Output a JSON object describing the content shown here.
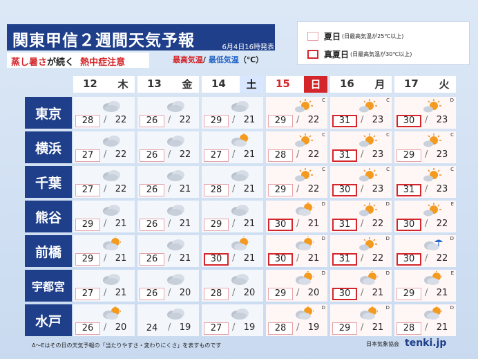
{
  "header": {
    "title": "関東甲信２週間天気予報",
    "issued": "6月4日16時発表",
    "subtitle_red1": "蒸し暑さ",
    "subtitle_black": "が続く",
    "subtitle_red2": "熱中症注意",
    "legend_hi": "最高気温",
    "legend_sep": "/",
    "legend_lo": "最低気温",
    "legend_unit": "（℃）"
  },
  "legend": {
    "natsubi_label": "夏日",
    "natsubi_desc": "(日最高気温が25℃以上)",
    "manatsubi_label": "真夏日",
    "manatsubi_desc": "(日最高気温が30℃以上)"
  },
  "colors": {
    "navy": "#1f3f8a",
    "red": "#d4252a",
    "pink": "#e8a3a8",
    "blue": "#2566c8"
  },
  "days": [
    {
      "num": "12",
      "wk": "木",
      "type": "wkday"
    },
    {
      "num": "13",
      "wk": "金",
      "type": "wkday"
    },
    {
      "num": "14",
      "wk": "土",
      "type": "sat"
    },
    {
      "num": "15",
      "wk": "日",
      "type": "sun"
    },
    {
      "num": "16",
      "wk": "月",
      "type": "wkday"
    },
    {
      "num": "17",
      "wk": "火",
      "type": "wkday"
    }
  ],
  "cities": [
    {
      "name": "東京",
      "cells": [
        {
          "icon": "cloudy",
          "rank": "",
          "hi": "28",
          "lo": "22",
          "style": "natsu"
        },
        {
          "icon": "cloudy",
          "rank": "",
          "hi": "26",
          "lo": "22",
          "style": "natsu"
        },
        {
          "icon": "cloudy",
          "rank": "",
          "hi": "29",
          "lo": "21",
          "style": "natsu"
        },
        {
          "icon": "sun-cloud",
          "rank": "C",
          "hi": "29",
          "lo": "22",
          "style": "natsu"
        },
        {
          "icon": "sun-cloud",
          "rank": "C",
          "hi": "31",
          "lo": "23",
          "style": "mana"
        },
        {
          "icon": "sun-cloud",
          "rank": "D",
          "hi": "30",
          "lo": "23",
          "style": "mana"
        }
      ]
    },
    {
      "name": "横浜",
      "cells": [
        {
          "icon": "cloudy",
          "rank": "",
          "hi": "27",
          "lo": "22",
          "style": "natsu"
        },
        {
          "icon": "cloudy",
          "rank": "",
          "hi": "26",
          "lo": "22",
          "style": "natsu"
        },
        {
          "icon": "cloud-sun",
          "rank": "",
          "hi": "27",
          "lo": "21",
          "style": "natsu"
        },
        {
          "icon": "sun-cloud",
          "rank": "C",
          "hi": "28",
          "lo": "22",
          "style": "natsu"
        },
        {
          "icon": "sun-cloud",
          "rank": "C",
          "hi": "31",
          "lo": "23",
          "style": "mana"
        },
        {
          "icon": "sun-cloud",
          "rank": "C",
          "hi": "29",
          "lo": "23",
          "style": "natsu"
        }
      ]
    },
    {
      "name": "千葉",
      "cells": [
        {
          "icon": "cloudy",
          "rank": "",
          "hi": "27",
          "lo": "22",
          "style": "natsu"
        },
        {
          "icon": "cloudy",
          "rank": "",
          "hi": "26",
          "lo": "21",
          "style": "natsu"
        },
        {
          "icon": "cloudy",
          "rank": "",
          "hi": "28",
          "lo": "21",
          "style": "natsu"
        },
        {
          "icon": "sun-cloud",
          "rank": "C",
          "hi": "29",
          "lo": "22",
          "style": "natsu"
        },
        {
          "icon": "sun-cloud",
          "rank": "C",
          "hi": "30",
          "lo": "23",
          "style": "mana"
        },
        {
          "icon": "sun-cloud",
          "rank": "C",
          "hi": "31",
          "lo": "23",
          "style": "mana"
        }
      ]
    },
    {
      "name": "熊谷",
      "cells": [
        {
          "icon": "cloudy",
          "rank": "",
          "hi": "29",
          "lo": "21",
          "style": "natsu"
        },
        {
          "icon": "cloudy",
          "rank": "",
          "hi": "26",
          "lo": "21",
          "style": "natsu"
        },
        {
          "icon": "cloudy",
          "rank": "",
          "hi": "29",
          "lo": "21",
          "style": "natsu"
        },
        {
          "icon": "cloud-sun",
          "rank": "D",
          "hi": "30",
          "lo": "21",
          "style": "mana"
        },
        {
          "icon": "sun-cloud",
          "rank": "D",
          "hi": "31",
          "lo": "22",
          "style": "mana"
        },
        {
          "icon": "sun-cloud",
          "rank": "E",
          "hi": "30",
          "lo": "22",
          "style": "mana"
        }
      ]
    },
    {
      "name": "前橋",
      "cells": [
        {
          "icon": "cloud-sun",
          "rank": "",
          "hi": "29",
          "lo": "21",
          "style": "natsu"
        },
        {
          "icon": "cloudy",
          "rank": "",
          "hi": "26",
          "lo": "21",
          "style": "natsu"
        },
        {
          "icon": "cloud-sun",
          "rank": "",
          "hi": "30",
          "lo": "21",
          "style": "mana"
        },
        {
          "icon": "cloud-sun",
          "rank": "D",
          "hi": "30",
          "lo": "21",
          "style": "mana"
        },
        {
          "icon": "sun-cloud",
          "rank": "D",
          "hi": "31",
          "lo": "22",
          "style": "mana"
        },
        {
          "icon": "cloud-umbrella",
          "rank": "D",
          "hi": "30",
          "lo": "22",
          "style": "mana"
        }
      ]
    },
    {
      "name": "宇都宮",
      "cells": [
        {
          "icon": "cloudy",
          "rank": "",
          "hi": "27",
          "lo": "21",
          "style": "natsu"
        },
        {
          "icon": "cloudy",
          "rank": "",
          "hi": "26",
          "lo": "20",
          "style": "natsu"
        },
        {
          "icon": "cloudy",
          "rank": "",
          "hi": "28",
          "lo": "20",
          "style": "natsu"
        },
        {
          "icon": "cloud-sun",
          "rank": "D",
          "hi": "29",
          "lo": "20",
          "style": "natsu"
        },
        {
          "icon": "cloud-sun",
          "rank": "D",
          "hi": "30",
          "lo": "21",
          "style": "mana"
        },
        {
          "icon": "cloud-sun",
          "rank": "E",
          "hi": "29",
          "lo": "21",
          "style": "natsu"
        }
      ]
    },
    {
      "name": "水戸",
      "cells": [
        {
          "icon": "cloud-sun",
          "rank": "",
          "hi": "26",
          "lo": "20",
          "style": "natsu"
        },
        {
          "icon": "cloudy",
          "rank": "",
          "hi": "24",
          "lo": "19",
          "style": "none"
        },
        {
          "icon": "cloudy",
          "rank": "",
          "hi": "27",
          "lo": "19",
          "style": "natsu"
        },
        {
          "icon": "cloud-sun",
          "rank": "D",
          "hi": "28",
          "lo": "19",
          "style": "natsu"
        },
        {
          "icon": "cloud-sun",
          "rank": "D",
          "hi": "29",
          "lo": "21",
          "style": "natsu"
        },
        {
          "icon": "cloud-sun",
          "rank": "D",
          "hi": "28",
          "lo": "21",
          "style": "natsu"
        }
      ]
    }
  ],
  "footer": {
    "note": "A～Eはその日の天気予報の「当たりやすさ・変わりにくさ」を表すものです",
    "org": "日本気象協会",
    "logo": "tenki.jp"
  }
}
